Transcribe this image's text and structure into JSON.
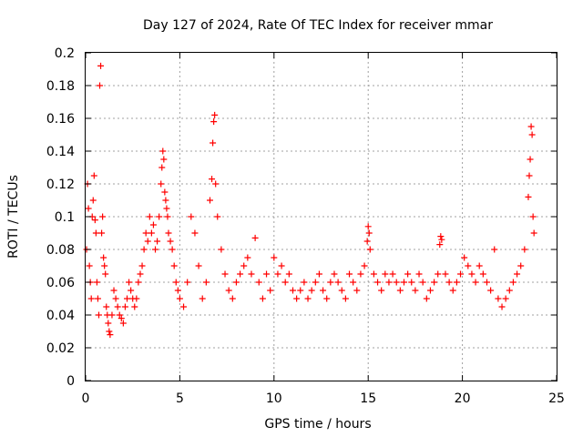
{
  "chart_data": {
    "type": "scatter",
    "title": "Day 127 of 2024, Rate Of TEC Index for receiver mmar",
    "xlabel": "GPS time / hours",
    "ylabel": "ROTI / TECUs",
    "xlim": [
      0,
      25
    ],
    "ylim": [
      0,
      0.2
    ],
    "xticks": [
      0,
      5,
      10,
      15,
      20,
      25
    ],
    "yticks": [
      0,
      0.02,
      0.04,
      0.06,
      0.08,
      0.1,
      0.12,
      0.14,
      0.16,
      0.18,
      0.2
    ],
    "grid": true,
    "marker": "+",
    "color": "#ff0000",
    "series": [
      {
        "x": [
          0.05,
          0.1,
          0.15,
          0.2,
          0.25,
          0.3,
          0.35,
          0.4,
          0.45,
          0.5,
          0.55,
          0.6,
          0.65,
          0.7,
          0.75,
          0.8,
          0.85,
          0.9,
          0.95,
          1.0,
          1.05,
          1.1,
          1.15,
          1.2,
          1.25,
          1.3,
          1.4,
          1.5,
          1.6,
          1.7,
          1.8,
          1.9,
          2.0,
          2.1,
          2.2,
          2.3,
          2.4,
          2.5,
          2.6,
          2.7,
          2.8,
          2.9,
          3.0,
          3.1,
          3.2,
          3.3,
          3.4,
          3.5,
          3.6,
          3.7,
          3.8,
          3.9,
          4.0,
          4.05,
          4.1,
          4.15,
          4.2,
          4.25,
          4.3,
          4.35,
          4.4,
          4.5,
          4.6,
          4.7,
          4.8,
          4.9,
          5.0,
          5.2,
          5.4,
          5.6,
          5.8,
          6.0,
          6.2,
          6.4,
          6.6,
          6.7,
          6.75,
          6.8,
          6.85,
          6.9,
          7.0,
          7.2,
          7.4,
          7.6,
          7.8,
          8.0,
          8.2,
          8.4,
          8.6,
          8.8,
          9.0,
          9.2,
          9.4,
          9.6,
          9.8,
          10.0,
          10.2,
          10.4,
          10.6,
          10.8,
          11.0,
          11.2,
          11.4,
          11.6,
          11.8,
          12.0,
          12.2,
          12.4,
          12.6,
          12.8,
          13.0,
          13.2,
          13.4,
          13.6,
          13.8,
          14.0,
          14.2,
          14.4,
          14.6,
          14.8,
          14.95,
          15.0,
          15.05,
          15.1,
          15.3,
          15.5,
          15.7,
          15.9,
          16.1,
          16.3,
          16.5,
          16.7,
          16.9,
          17.1,
          17.3,
          17.5,
          17.7,
          17.9,
          18.1,
          18.3,
          18.5,
          18.7,
          18.8,
          18.85,
          18.9,
          19.1,
          19.3,
          19.5,
          19.7,
          19.9,
          20.1,
          20.3,
          20.5,
          20.7,
          20.9,
          21.1,
          21.3,
          21.5,
          21.7,
          21.9,
          22.1,
          22.3,
          22.5,
          22.7,
          22.9,
          23.1,
          23.3,
          23.5,
          23.55,
          23.6,
          23.65,
          23.7,
          23.75,
          23.8
        ],
        "y": [
          0.08,
          0.12,
          0.105,
          0.07,
          0.06,
          0.05,
          0.1,
          0.11,
          0.125,
          0.098,
          0.09,
          0.06,
          0.05,
          0.04,
          0.18,
          0.192,
          0.09,
          0.1,
          0.075,
          0.07,
          0.065,
          0.045,
          0.04,
          0.035,
          0.03,
          0.028,
          0.04,
          0.055,
          0.05,
          0.045,
          0.04,
          0.038,
          0.035,
          0.045,
          0.05,
          0.06,
          0.055,
          0.05,
          0.045,
          0.05,
          0.06,
          0.065,
          0.07,
          0.08,
          0.09,
          0.085,
          0.1,
          0.09,
          0.095,
          0.08,
          0.085,
          0.1,
          0.12,
          0.13,
          0.14,
          0.135,
          0.115,
          0.11,
          0.105,
          0.1,
          0.09,
          0.085,
          0.08,
          0.07,
          0.06,
          0.055,
          0.05,
          0.045,
          0.06,
          0.1,
          0.09,
          0.07,
          0.05,
          0.06,
          0.11,
          0.123,
          0.145,
          0.158,
          0.162,
          0.12,
          0.1,
          0.08,
          0.065,
          0.055,
          0.05,
          0.06,
          0.065,
          0.07,
          0.075,
          0.065,
          0.087,
          0.06,
          0.05,
          0.065,
          0.055,
          0.075,
          0.065,
          0.07,
          0.06,
          0.065,
          0.055,
          0.05,
          0.055,
          0.06,
          0.05,
          0.055,
          0.06,
          0.065,
          0.055,
          0.05,
          0.06,
          0.065,
          0.06,
          0.055,
          0.05,
          0.065,
          0.06,
          0.055,
          0.065,
          0.07,
          0.085,
          0.094,
          0.09,
          0.08,
          0.065,
          0.06,
          0.055,
          0.065,
          0.06,
          0.065,
          0.06,
          0.055,
          0.06,
          0.065,
          0.06,
          0.055,
          0.065,
          0.06,
          0.05,
          0.055,
          0.06,
          0.065,
          0.083,
          0.088,
          0.086,
          0.065,
          0.06,
          0.055,
          0.06,
          0.065,
          0.075,
          0.07,
          0.065,
          0.06,
          0.07,
          0.065,
          0.06,
          0.055,
          0.08,
          0.05,
          0.045,
          0.05,
          0.055,
          0.06,
          0.065,
          0.07,
          0.08,
          0.112,
          0.125,
          0.135,
          0.155,
          0.15,
          0.1,
          0.09
        ]
      }
    ]
  }
}
